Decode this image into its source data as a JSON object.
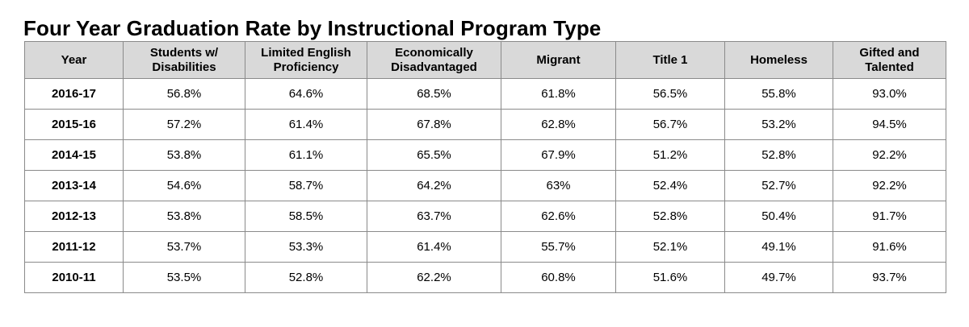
{
  "title": "Four Year Graduation Rate by Instructional Program Type",
  "table": {
    "headers": [
      [
        "Year"
      ],
      [
        "Students w/",
        "Disabilities"
      ],
      [
        "Limited English",
        "Proficiency"
      ],
      [
        "Economically",
        "Disadvantaged"
      ],
      [
        "Migrant"
      ],
      [
        "Title 1"
      ],
      [
        "Homeless"
      ],
      [
        "Gifted and",
        "Talented"
      ]
    ],
    "rows": [
      [
        "2016-17",
        "56.8%",
        "64.6%",
        "68.5%",
        "61.8%",
        "56.5%",
        "55.8%",
        "93.0%"
      ],
      [
        "2015-16",
        "57.2%",
        "61.4%",
        "67.8%",
        "62.8%",
        "56.7%",
        "53.2%",
        "94.5%"
      ],
      [
        "2014-15",
        "53.8%",
        "61.1%",
        "65.5%",
        "67.9%",
        "51.2%",
        "52.8%",
        "92.2%"
      ],
      [
        "2013-14",
        "54.6%",
        "58.7%",
        "64.2%",
        "63%",
        "52.4%",
        "52.7%",
        "92.2%"
      ],
      [
        "2012-13",
        "53.8%",
        "58.5%",
        "63.7%",
        "62.6%",
        "52.8%",
        "50.4%",
        "91.7%"
      ],
      [
        "2011-12",
        "53.7%",
        "53.3%",
        "61.4%",
        "55.7%",
        "52.1%",
        "49.1%",
        "91.6%"
      ],
      [
        "2010-11",
        "53.5%",
        "52.8%",
        "62.2%",
        "60.8%",
        "51.6%",
        "49.7%",
        "93.7%"
      ]
    ]
  },
  "colors": {
    "header_bg": "#d9d9d9",
    "border": "#8a8a8a"
  }
}
